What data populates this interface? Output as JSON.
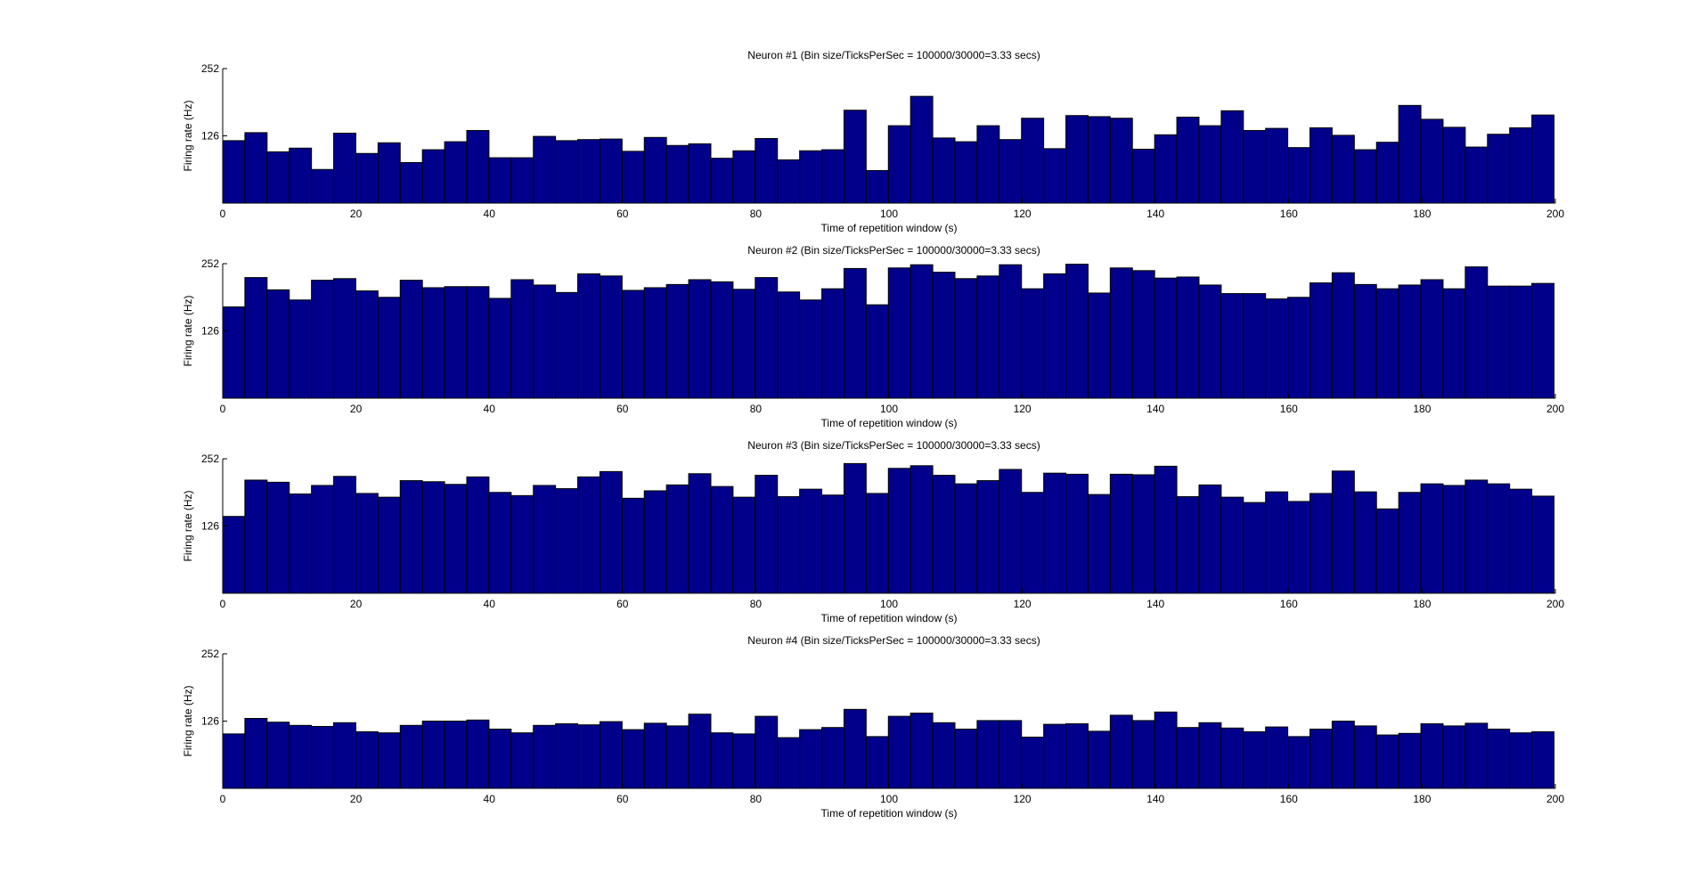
{
  "figure": {
    "background": "#ffffff",
    "bar_color": "#00008b",
    "edge_color": "#000000"
  },
  "chart_data": [
    {
      "type": "bar",
      "title": "Neuron #1 (Bin size/TicksPerSec = 100000/30000=3.33 secs)",
      "xlabel": "Time of repetition window (s)",
      "ylabel": "Firing rate (Hz)",
      "xlim": [
        0,
        200
      ],
      "ylim": [
        0,
        252
      ],
      "xticks": [
        0,
        20,
        40,
        60,
        80,
        100,
        120,
        140,
        160,
        180,
        200
      ],
      "yticks": [
        126,
        252
      ],
      "bin_width": 3.33,
      "values": [
        117,
        132,
        96,
        103,
        63,
        131,
        93,
        113,
        76,
        100,
        115,
        136,
        85,
        85,
        125,
        117,
        119,
        120,
        97,
        123,
        108,
        111,
        84,
        98,
        121,
        81,
        98,
        100,
        174,
        61,
        145,
        200,
        122,
        115,
        145,
        119,
        159,
        102,
        164,
        162,
        159,
        101,
        128,
        161,
        145,
        173,
        136,
        140,
        104,
        141,
        127,
        100,
        114,
        183,
        157,
        142,
        105,
        129,
        141,
        165
      ]
    },
    {
      "type": "bar",
      "title": "Neuron #2 (Bin size/TicksPerSec = 100000/30000=3.33 secs)",
      "xlabel": "Time of repetition window (s)",
      "ylabel": "Firing rate (Hz)",
      "xlim": [
        0,
        200
      ],
      "ylim": [
        0,
        252
      ],
      "xticks": [
        0,
        20,
        40,
        60,
        80,
        100,
        120,
        140,
        160,
        180,
        200
      ],
      "yticks": [
        126,
        252
      ],
      "bin_width": 3.33,
      "values": [
        171,
        226,
        203,
        184,
        221,
        224,
        201,
        189,
        221,
        207,
        209,
        209,
        187,
        222,
        212,
        198,
        233,
        229,
        202,
        207,
        213,
        222,
        218,
        204,
        226,
        199,
        184,
        205,
        243,
        175,
        244,
        250,
        236,
        224,
        229,
        250,
        205,
        233,
        251,
        197,
        244,
        239,
        225,
        227,
        212,
        196,
        196,
        186,
        189,
        216,
        235,
        213,
        205,
        212,
        222,
        205,
        246,
        210,
        210,
        215
      ]
    },
    {
      "type": "bar",
      "title": "Neuron #3 (Bin size/TicksPerSec = 100000/30000=3.33 secs)",
      "xlabel": "Time of repetition window (s)",
      "ylabel": "Firing rate (Hz)",
      "xlim": [
        0,
        200
      ],
      "ylim": [
        0,
        252
      ],
      "xticks": [
        0,
        20,
        40,
        60,
        80,
        100,
        120,
        140,
        160,
        180,
        200
      ],
      "yticks": [
        126,
        252
      ],
      "bin_width": 3.33,
      "values": [
        144,
        212,
        208,
        186,
        202,
        219,
        187,
        180,
        211,
        209,
        204,
        218,
        189,
        183,
        202,
        196,
        218,
        228,
        178,
        192,
        203,
        224,
        200,
        180,
        221,
        181,
        195,
        184,
        243,
        187,
        234,
        239,
        221,
        205,
        211,
        232,
        189,
        225,
        223,
        185,
        223,
        222,
        238,
        181,
        203,
        180,
        170,
        190,
        172,
        187,
        229,
        190,
        158,
        189,
        205,
        202,
        212,
        205,
        195,
        182
      ]
    },
    {
      "type": "bar",
      "title": "Neuron #4 (Bin size/TicksPerSec = 100000/30000=3.33 secs)",
      "xlabel": "Time of repetition window (s)",
      "ylabel": "Firing rate (Hz)",
      "xlim": [
        0,
        200
      ],
      "ylim": [
        0,
        252
      ],
      "xticks": [
        0,
        20,
        40,
        60,
        80,
        100,
        120,
        140,
        160,
        180,
        200
      ],
      "yticks": [
        126,
        252
      ],
      "bin_width": 3.33,
      "values": [
        102,
        131,
        124,
        118,
        116,
        123,
        106,
        104,
        118,
        126,
        126,
        128,
        111,
        104,
        118,
        121,
        119,
        125,
        110,
        122,
        117,
        139,
        104,
        102,
        135,
        95,
        110,
        114,
        148,
        97,
        135,
        141,
        123,
        111,
        127,
        127,
        96,
        120,
        121,
        107,
        137,
        127,
        143,
        114,
        123,
        113,
        106,
        115,
        97,
        111,
        126,
        117,
        100,
        103,
        121,
        117,
        122,
        111,
        104,
        106
      ]
    }
  ]
}
